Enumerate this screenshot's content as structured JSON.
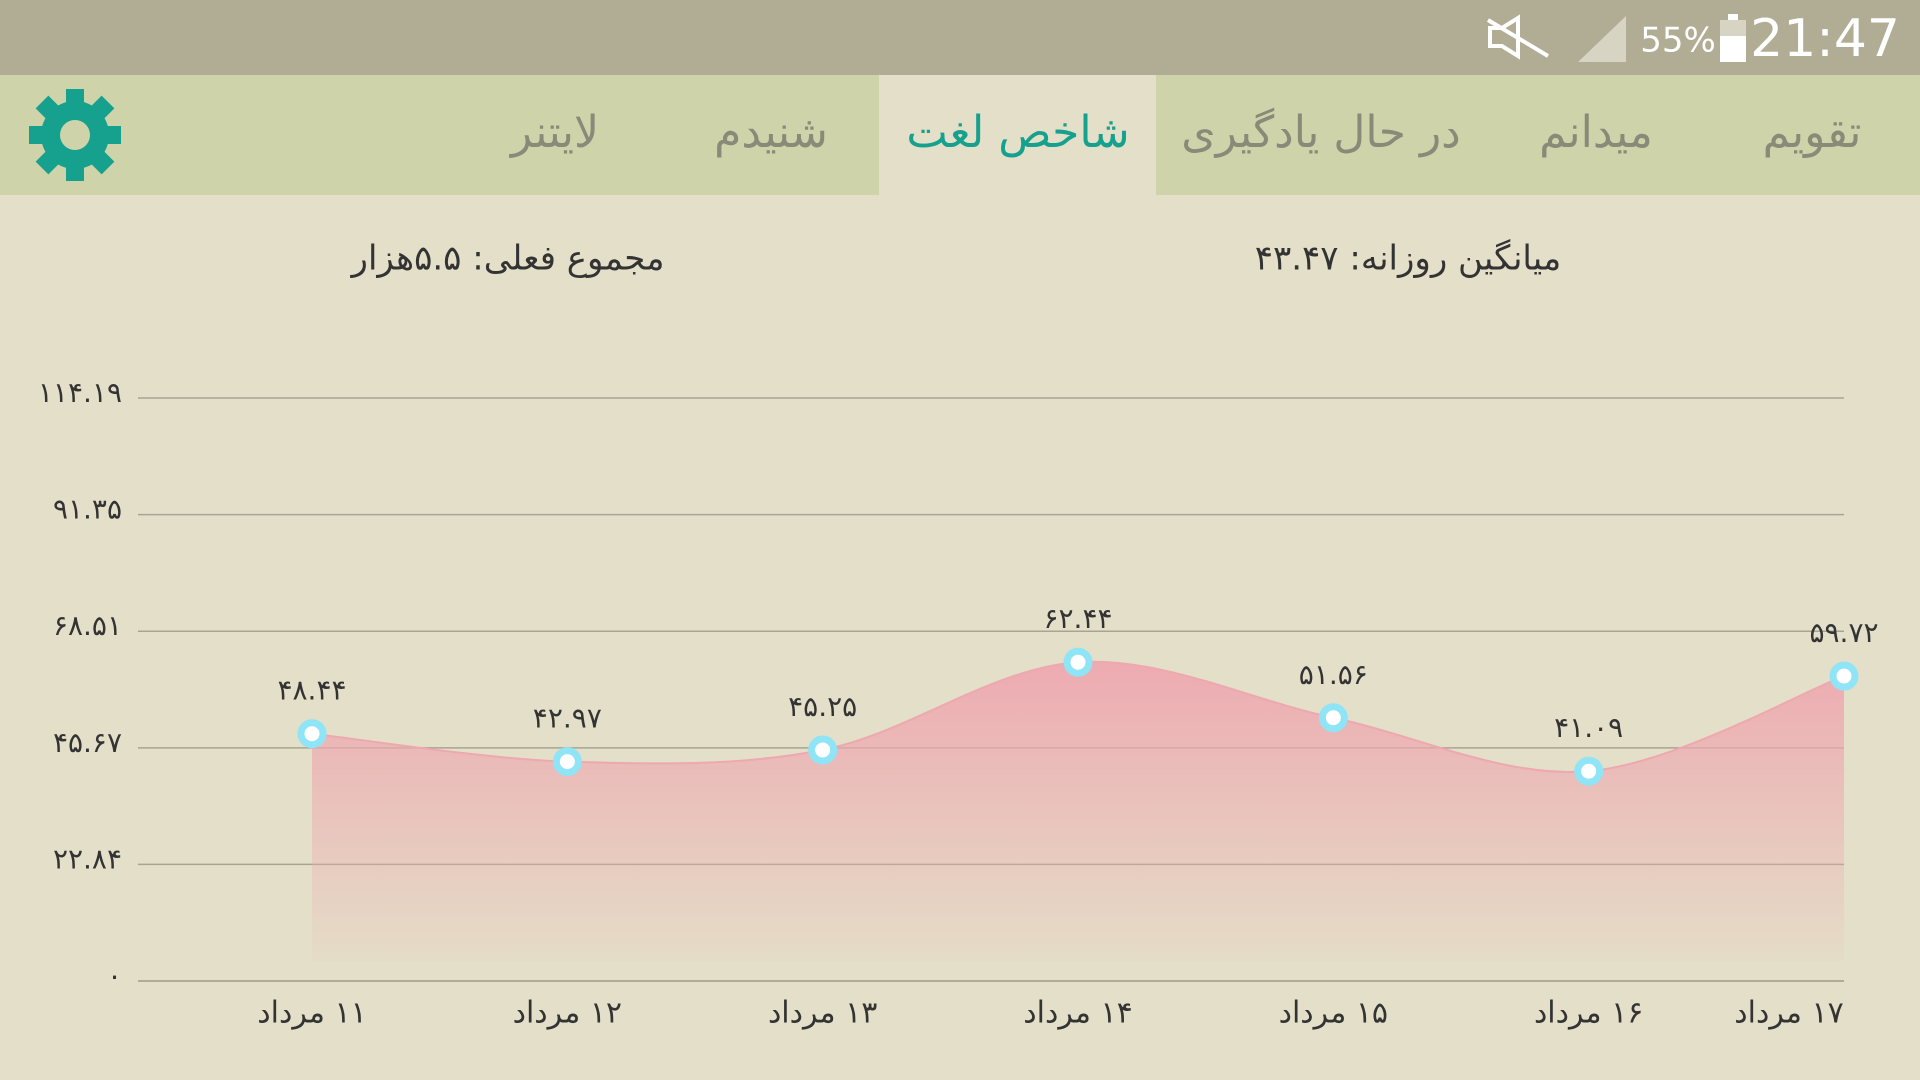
{
  "status_bar": {
    "battery": "55%",
    "time": "21:47"
  },
  "tabs": [
    {
      "label": "تقویم"
    },
    {
      "label": "میدانم"
    },
    {
      "label": "در حال یادگیری"
    },
    {
      "label": "شاخص لغت",
      "active": true
    },
    {
      "label": "شنیدم"
    },
    {
      "label": "لایتنر"
    }
  ],
  "stats": {
    "daily_average": "میانگین روزانه: ۴۳.۴۷",
    "current_total": "مجموع فعلی: ۵.۵هزار"
  },
  "chart_data": {
    "type": "area",
    "color": "#eea8b0",
    "marker_color": "#8fe4f6",
    "grid": true,
    "categories": [
      "۱۱ مرداد",
      "۱۲ مرداد",
      "۱۳ مرداد",
      "۱۴ مرداد",
      "۱۵ مرداد",
      "۱۶ مرداد",
      "۱۷ مرداد"
    ],
    "values": [
      48.44,
      42.97,
      45.25,
      62.44,
      51.56,
      41.09,
      59.72
    ],
    "value_labels": [
      "۴۸.۴۴",
      "۴۲.۹۷",
      "۴۵.۲۵",
      "۶۲.۴۴",
      "۵۱.۵۶",
      "۴۱.۰۹",
      "۵۹.۷۲"
    ],
    "ylim": [
      0,
      114.19
    ],
    "yticks": [
      {
        "value": 0,
        "label": "۰"
      },
      {
        "value": 22.84,
        "label": "۲۲.۸۴"
      },
      {
        "value": 45.67,
        "label": "۴۵.۶۷"
      },
      {
        "value": 68.51,
        "label": "۶۸.۵۱"
      },
      {
        "value": 91.35,
        "label": "۹۱.۳۵"
      },
      {
        "value": 114.19,
        "label": "۱۱۴.۱۹"
      }
    ]
  }
}
